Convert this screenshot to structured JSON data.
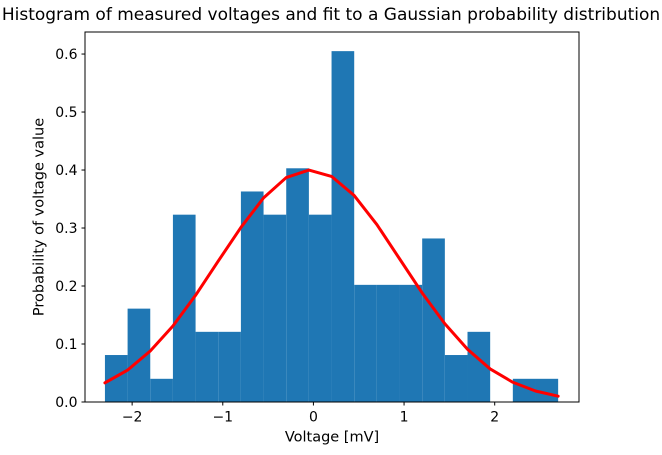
{
  "figure": {
    "background": "#ffffff"
  },
  "chart_data": {
    "type": "bar",
    "subtype": "histogram-with-fit-line",
    "title": "Histogram of measured voltages and fit to a Gaussian probability distribution",
    "xlabel": "Voltage [mV]",
    "ylabel": "Probability of voltage value",
    "grid": false,
    "legend": null,
    "bar_color": "#1f77b4",
    "line_color": "#ff0000",
    "axis_color": "#000000",
    "xlim": [
      -2.52,
      2.93
    ],
    "ylim": [
      0,
      0.638
    ],
    "xticks": {
      "values": [
        -2,
        -1,
        0,
        1,
        2
      ],
      "labels": [
        "−2",
        "−1",
        "0",
        "1",
        "2"
      ]
    },
    "yticks": {
      "values": [
        0,
        0.1,
        0.2,
        0.3,
        0.4,
        0.5,
        0.6
      ],
      "labels": [
        "0.0",
        "0.1",
        "0.2",
        "0.3",
        "0.4",
        "0.5",
        "0.6"
      ]
    },
    "histogram": {
      "bin_edges": [
        -2.3,
        -2.05,
        -1.8,
        -1.55,
        -1.3,
        -1.05,
        -0.8,
        -0.55,
        -0.3,
        -0.05,
        0.2,
        0.45,
        0.7,
        0.95,
        1.2,
        1.45,
        1.7,
        1.95,
        2.2,
        2.45,
        2.7
      ],
      "densities": [
        0.081,
        0.161,
        0.04,
        0.323,
        0.121,
        0.121,
        0.363,
        0.323,
        0.403,
        0.323,
        0.605,
        0.202,
        0.202,
        0.202,
        0.282,
        0.081,
        0.121,
        0.0,
        0.04,
        0.04
      ]
    },
    "gaussian_fit": {
      "peak_value": 0.4,
      "peak_x": -0.05,
      "sigma_approx": 1.0,
      "x": [
        -2.3,
        -2.05,
        -1.8,
        -1.55,
        -1.3,
        -1.05,
        -0.8,
        -0.55,
        -0.3,
        -0.05,
        0.2,
        0.45,
        0.7,
        0.95,
        1.2,
        1.45,
        1.7,
        1.95,
        2.2,
        2.45,
        2.7
      ],
      "y": [
        0.033,
        0.055,
        0.088,
        0.131,
        0.184,
        0.243,
        0.301,
        0.352,
        0.387,
        0.4,
        0.389,
        0.356,
        0.306,
        0.247,
        0.188,
        0.135,
        0.091,
        0.057,
        0.034,
        0.019,
        0.01
      ]
    }
  }
}
